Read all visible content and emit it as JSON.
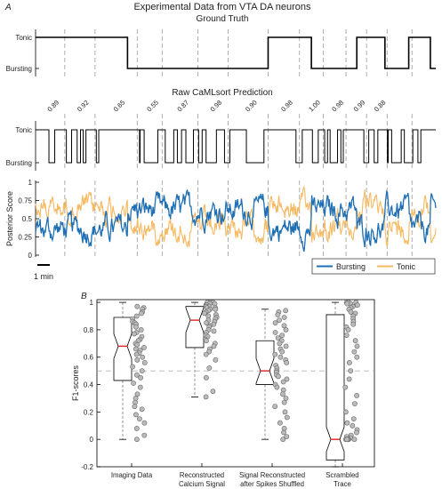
{
  "panel_a_label": "A",
  "panel_b_label": "B",
  "chart_data": [
    {
      "type": "line",
      "title": "Experimental Data from VTA DA neurons",
      "subtitle": "Ground Truth",
      "yticklabels": [
        "Tonic",
        "Bursting"
      ],
      "transitions_min": [
        0,
        8.5,
        21.5,
        25.5,
        29.7,
        32.3,
        34.5,
        36.5
      ],
      "states": [
        "Tonic",
        "Bursting",
        "Tonic",
        "Bursting",
        "Tonic",
        "Bursting",
        "Tonic",
        "Bursting"
      ],
      "duration_min": 37,
      "segment_boundaries_min": [
        2.7,
        5.5,
        9.4,
        11.7,
        15.0,
        17.8,
        21.5,
        24.4,
        26.6,
        28.7,
        30.6,
        32.5,
        34.8
      ],
      "scalebar_label": "1 min"
    },
    {
      "type": "line",
      "title": "Raw CaMLsort Prediction",
      "yticklabels": [
        "Tonic",
        "Bursting"
      ],
      "segment_scores": [
        "0.89",
        "0.92",
        "0.65",
        "0.55",
        "0.87",
        "0.98",
        "0.90",
        "0.98",
        "1.00",
        "0.98",
        "0.99",
        "0.88"
      ]
    },
    {
      "type": "line",
      "ylabel": "Posterior Score",
      "ylim": [
        0,
        1
      ],
      "yticks": [
        "0",
        "0.25",
        "0.5",
        "0.75",
        "1"
      ],
      "series": [
        {
          "name": "Bursting",
          "color": "#1f6fb4"
        },
        {
          "name": "Tonic",
          "color": "#f5b961"
        }
      ],
      "legend_position": "bottom-right"
    },
    {
      "type": "box",
      "ylabel": "F1-scores",
      "ylim": [
        -0.2,
        1.02
      ],
      "yticks": [
        "-0.2",
        "0",
        "0.2",
        "0.4",
        "0.6",
        "0.8",
        "1"
      ],
      "reference_line": 0.5,
      "categories": [
        [
          "Imaging Data"
        ],
        [
          "Reconstructed",
          "Calcium Signal"
        ],
        [
          "Signal Reconstructed",
          "after Spikes Shuffled"
        ],
        [
          "Scrambled",
          "Trace"
        ]
      ],
      "boxes": [
        {
          "whisker_low": 0.0,
          "q1": 0.43,
          "median": 0.68,
          "q3": 0.89,
          "whisker_high": 1.0
        },
        {
          "whisker_low": 0.31,
          "q1": 0.67,
          "median": 0.87,
          "q3": 0.97,
          "whisker_high": 1.0
        },
        {
          "whisker_low": 0.0,
          "q1": 0.4,
          "median": 0.5,
          "q3": 0.72,
          "whisker_high": 0.95
        },
        {
          "whisker_low": -0.2,
          "q1": -0.15,
          "median": 0.0,
          "q3": 0.91,
          "whisker_high": 1.0
        }
      ],
      "points": [
        [
          0.97,
          0.96,
          0.95,
          0.93,
          0.92,
          0.9,
          0.88,
          0.86,
          0.85,
          0.84,
          0.82,
          0.8,
          0.78,
          0.77,
          0.75,
          0.73,
          0.72,
          0.7,
          0.69,
          0.67,
          0.66,
          0.65,
          0.63,
          0.62,
          0.6,
          0.58,
          0.56,
          0.53,
          0.5,
          0.47,
          0.45,
          0.41,
          0.38,
          0.33,
          0.3,
          0.27,
          0.24,
          0.22,
          0.18,
          0.15,
          0.12,
          0.08,
          0.03,
          0.0
        ],
        [
          1.0,
          1.0,
          1.0,
          0.99,
          0.99,
          0.98,
          0.98,
          0.97,
          0.97,
          0.96,
          0.96,
          0.95,
          0.95,
          0.94,
          0.93,
          0.92,
          0.91,
          0.9,
          0.89,
          0.88,
          0.87,
          0.86,
          0.85,
          0.84,
          0.83,
          0.82,
          0.8,
          0.79,
          0.78,
          0.76,
          0.75,
          0.73,
          0.72,
          0.7,
          0.68,
          0.66,
          0.64,
          0.62,
          0.58,
          0.52,
          0.45,
          0.35,
          0.31
        ],
        [
          0.94,
          0.93,
          0.91,
          0.89,
          0.87,
          0.85,
          0.83,
          0.8,
          0.78,
          0.76,
          0.74,
          0.72,
          0.7,
          0.68,
          0.66,
          0.64,
          0.62,
          0.6,
          0.58,
          0.56,
          0.54,
          0.52,
          0.5,
          0.49,
          0.47,
          0.46,
          0.44,
          0.42,
          0.4,
          0.38,
          0.36,
          0.33,
          0.3,
          0.27,
          0.24,
          0.2,
          0.16,
          0.12,
          0.08,
          0.05,
          0.02,
          0.0
        ],
        [
          1.0,
          1.0,
          1.0,
          1.0,
          0.99,
          0.99,
          0.98,
          0.97,
          0.96,
          0.95,
          0.93,
          0.92,
          0.9,
          0.88,
          0.86,
          0.84,
          0.82,
          0.8,
          0.76,
          0.72,
          0.68,
          0.64,
          0.6,
          0.56,
          0.5,
          0.44,
          0.38,
          0.32,
          0.26,
          0.2,
          0.15,
          0.12,
          0.1,
          0.07,
          0.05,
          0.03,
          0.02,
          0.01,
          0.0,
          0.0,
          0.0,
          0.0,
          0.0,
          0.0
        ]
      ]
    }
  ]
}
